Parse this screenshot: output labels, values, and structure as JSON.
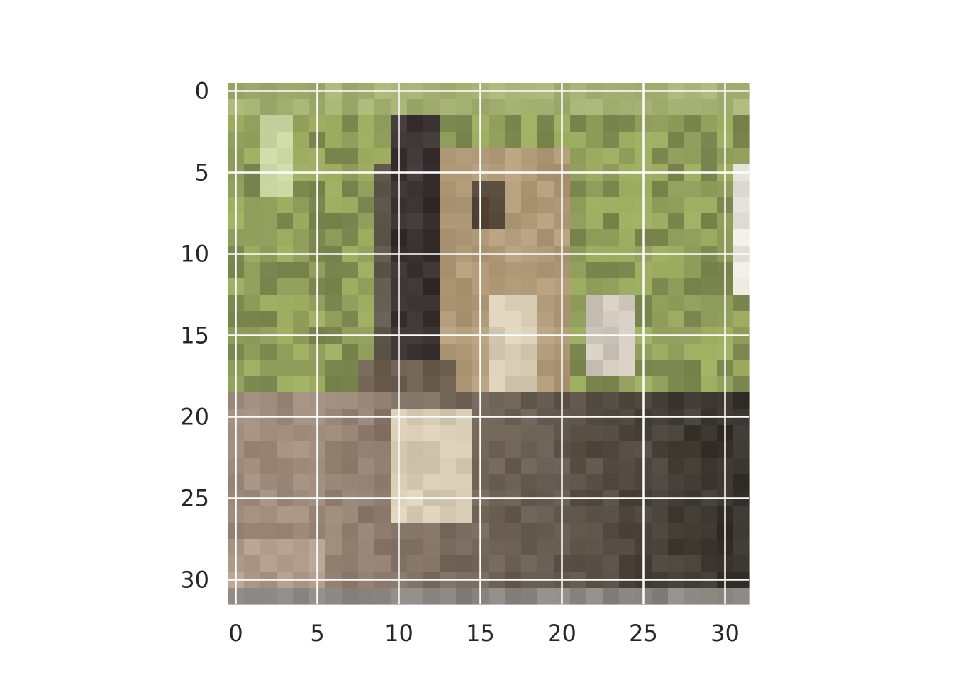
{
  "figure": {
    "image_grid": {
      "rows": 32,
      "cols": 32,
      "description_colors": {
        "grass_light": "#a7b86a",
        "grass_mid": "#8f9e5a",
        "grass_dark": "#6f7d45",
        "animal_tan": "#b09a78",
        "animal_light": "#d8ccb4",
        "animal_dark": "#3a3230",
        "ground_brown": "#6b5c50",
        "ground_dark": "#2c2a24",
        "ground_light": "#a08c7c"
      }
    },
    "x_axis": {
      "ticks": [
        "0",
        "5",
        "10",
        "15",
        "20",
        "25",
        "30"
      ]
    },
    "y_axis": {
      "ticks": [
        "0",
        "5",
        "10",
        "15",
        "20",
        "25",
        "30"
      ]
    },
    "grid": true,
    "grid_color": "#ffffff"
  }
}
